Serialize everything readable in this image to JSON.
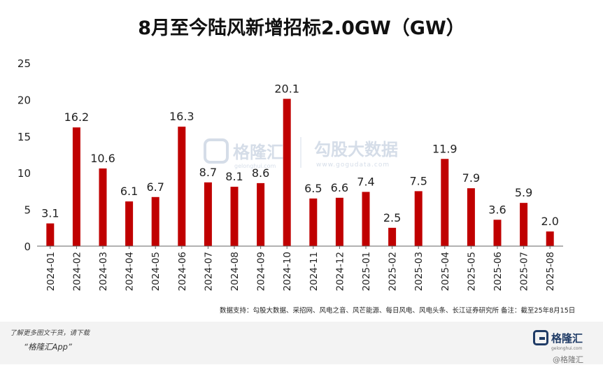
{
  "chart_data": {
    "type": "bar",
    "title": "8月至今陆风新增招标2.0GW（GW）",
    "categories": [
      "2024-01",
      "2024-02",
      "2024-03",
      "2024-04",
      "2024-05",
      "2024-06",
      "2024-07",
      "2024-08",
      "2024-09",
      "2024-10",
      "2024-11",
      "2024-12",
      "2025-01",
      "2025-02",
      "2025-03",
      "2025-04",
      "2025-05",
      "2025-06",
      "2025-07",
      "2025-08"
    ],
    "values": [
      3.1,
      16.2,
      10.6,
      6.1,
      6.7,
      16.3,
      8.7,
      8.1,
      8.6,
      20.1,
      6.5,
      6.6,
      7.4,
      2.5,
      7.5,
      11.9,
      7.9,
      3.6,
      5.9,
      2.0
    ],
    "value_labels": [
      "3.1",
      "16.2",
      "10.6",
      "6.1",
      "6.7",
      "16.3",
      "8.7",
      "8.1",
      "8.6",
      "20.1",
      "6.5",
      "6.6",
      "7.4",
      "2.5",
      "7.5",
      "11.9",
      "7.9",
      "3.6",
      "5.9",
      "2.0"
    ],
    "ylim": [
      0,
      25
    ],
    "yticks": [
      0,
      5,
      10,
      15,
      20,
      25
    ],
    "xlabel": "",
    "ylabel": "",
    "bar_color": "#c00000",
    "grid": false,
    "source": "数据支持：勾股大数据、采招网、风电之音、风芒能源、每日风电、风电头条、长江证券研究所 备注：截至25年8月15日"
  },
  "watermark": {
    "brand": "格隆汇",
    "brand_url": "gelonghui.com",
    "data": "勾股大数据",
    "data_url": "www.gogudata.com"
  },
  "footer": {
    "line1": "了解更多图文干货，请下载",
    "line2": "“格隆汇App”",
    "logo_text": "格隆汇",
    "logo_sub": "gelonghui.com",
    "watermark_text": "@格隆汇"
  }
}
